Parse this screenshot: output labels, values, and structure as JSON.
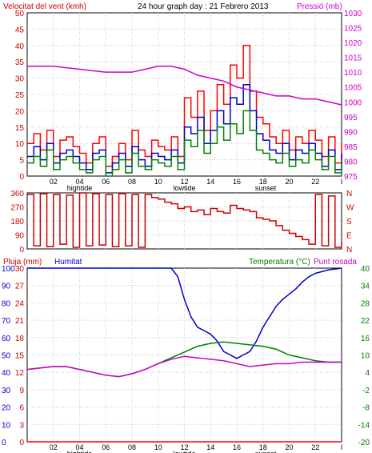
{
  "chart_data": [
    {
      "type": "line",
      "title": "24 hour graph day : 21 Febrero 2013",
      "left_label": "Velocitat del vent (kmh)",
      "right_label": "Pressió (mb)",
      "ylim": [
        0,
        50
      ],
      "y2lim": [
        975,
        1030
      ],
      "yticks": [
        "0",
        "5",
        "10",
        "15",
        "20",
        "25",
        "30",
        "35",
        "40",
        "45",
        "50"
      ],
      "y2ticks": [
        "975",
        "980",
        "985",
        "990",
        "995",
        "1000",
        "1005",
        "1010",
        "1015",
        "1020",
        "1025",
        "1030"
      ],
      "xticks": [
        "02",
        "04",
        "06",
        "08",
        "10",
        "12",
        "14",
        "16",
        "18",
        "20",
        "22",
        "I"
      ],
      "annotations": [
        "hightide",
        "lowtide",
        "sunset"
      ],
      "series": [
        {
          "role": "wind_gust",
          "color": "#ff0000",
          "x": [
            0,
            0.5,
            1,
            1.5,
            2,
            2.5,
            3,
            3.5,
            4,
            4.5,
            5,
            5.5,
            6,
            6.5,
            7,
            7.5,
            8,
            8.5,
            9,
            9.5,
            10,
            10.5,
            11,
            11.5,
            12,
            12.5,
            13,
            13.5,
            14,
            14.5,
            15,
            15.5,
            16,
            16.5,
            17,
            17.5,
            18,
            18.5,
            19,
            19.5,
            20,
            20.5,
            21,
            21.5,
            22,
            22.5,
            23,
            23.5,
            24
          ],
          "values": [
            10,
            13,
            8,
            14,
            6,
            11,
            12,
            9,
            7,
            4,
            10,
            12,
            3,
            6,
            10,
            5,
            14,
            8,
            6,
            11,
            9,
            8,
            12,
            6,
            24,
            18,
            26,
            14,
            20,
            28,
            22,
            34,
            30,
            40,
            26,
            18,
            16,
            12,
            10,
            14,
            8,
            12,
            10,
            14,
            11,
            6,
            12,
            4,
            10
          ]
        },
        {
          "role": "wind_avg",
          "color": "#0000cc",
          "x": [
            0,
            0.5,
            1,
            1.5,
            2,
            2.5,
            3,
            3.5,
            4,
            4.5,
            5,
            5.5,
            6,
            6.5,
            7,
            7.5,
            8,
            8.5,
            9,
            9.5,
            10,
            10.5,
            11,
            11.5,
            12,
            12.5,
            13,
            13.5,
            14,
            14.5,
            15,
            15.5,
            16,
            16.5,
            17,
            17.5,
            18,
            18.5,
            19,
            19.5,
            20,
            20.5,
            21,
            21.5,
            22,
            22.5,
            23,
            23.5,
            24
          ],
          "values": [
            6,
            9,
            5,
            10,
            4,
            7,
            8,
            6,
            4,
            2,
            7,
            8,
            1,
            4,
            7,
            3,
            9,
            5,
            3,
            7,
            6,
            5,
            8,
            4,
            15,
            13,
            18,
            10,
            14,
            20,
            16,
            24,
            22,
            28,
            20,
            13,
            11,
            8,
            7,
            10,
            5,
            8,
            7,
            10,
            7,
            3,
            8,
            2,
            7
          ]
        },
        {
          "role": "wind_dir_avg",
          "color": "#008000",
          "x": [
            0,
            0.5,
            1,
            1.5,
            2,
            2.5,
            3,
            3.5,
            4,
            4.5,
            5,
            5.5,
            6,
            6.5,
            7,
            7.5,
            8,
            8.5,
            9,
            9.5,
            10,
            10.5,
            11,
            11.5,
            12,
            12.5,
            13,
            13.5,
            14,
            14.5,
            15,
            15.5,
            16,
            16.5,
            17,
            17.5,
            18,
            18.5,
            19,
            19.5,
            20,
            20.5,
            21,
            21.5,
            22,
            22.5,
            23,
            23.5,
            24
          ],
          "values": [
            4,
            6,
            3,
            8,
            2,
            5,
            6,
            4,
            2,
            1,
            5,
            6,
            0,
            2,
            5,
            1,
            7,
            3,
            2,
            5,
            4,
            3,
            6,
            2,
            11,
            9,
            14,
            7,
            10,
            15,
            11,
            16,
            13,
            20,
            14,
            8,
            7,
            5,
            4,
            7,
            3,
            5,
            4,
            8,
            5,
            2,
            6,
            1,
            5
          ]
        },
        {
          "role": "pressure",
          "color": "#cc00cc",
          "axis": "right",
          "x": [
            0,
            2,
            4,
            6,
            8,
            9,
            10,
            11,
            12,
            13,
            14,
            15,
            16,
            17,
            18,
            19,
            20,
            21,
            22,
            23,
            24
          ],
          "values": [
            1012,
            1012,
            1011,
            1010,
            1010,
            1011,
            1012,
            1012,
            1011,
            1009,
            1008,
            1007,
            1005,
            1004,
            1003,
            1002,
            1002,
            1001,
            1001,
            1000,
            999
          ]
        }
      ]
    },
    {
      "type": "line",
      "ylim": [
        0,
        360
      ],
      "yticks": [
        "0",
        "90",
        "180",
        "270",
        "360"
      ],
      "compass": [
        "N",
        "W",
        "S",
        "E",
        "N"
      ],
      "series": [
        {
          "role": "wind_direction",
          "color": "#cc0000",
          "x": [
            0,
            0.5,
            1,
            1.5,
            2,
            2.5,
            3,
            3.5,
            4,
            4.5,
            5,
            5.5,
            6,
            6.5,
            7,
            7.5,
            8,
            8.5,
            9,
            9.5,
            10,
            10.5,
            11,
            11.5,
            12,
            12.5,
            13,
            13.5,
            14,
            14.5,
            15,
            15.5,
            16,
            16.5,
            17,
            17.5,
            18,
            18.5,
            19,
            19.5,
            20,
            20.5,
            21,
            21.5,
            22,
            22.5,
            23,
            23.5,
            24
          ],
          "values": [
            350,
            20,
            355,
            15,
            350,
            30,
            345,
            10,
            360,
            20,
            355,
            25,
            350,
            15,
            355,
            20,
            350,
            10,
            350,
            330,
            320,
            300,
            290,
            260,
            270,
            240,
            250,
            220,
            260,
            240,
            230,
            280,
            260,
            250,
            240,
            200,
            190,
            180,
            150,
            120,
            100,
            80,
            60,
            30,
            350,
            20,
            340,
            10,
            50
          ]
        }
      ]
    },
    {
      "type": "line",
      "labels_left": [
        "Pluja (mm)",
        "Humitat"
      ],
      "labels_right": [
        "Temperatura (°C)",
        "Punt rosada"
      ],
      "ylim_humidity": [
        0,
        100
      ],
      "ylim_rain": [
        0,
        30
      ],
      "ylim_temp": [
        -20,
        40
      ],
      "yticks_humidity": [
        "0",
        "10",
        "20",
        "30",
        "40",
        "50",
        "60",
        "70",
        "80",
        "90",
        "100"
      ],
      "yticks_rain": [
        "0",
        "3",
        "6",
        "9",
        "12",
        "15",
        "18",
        "21",
        "24",
        "27",
        "30"
      ],
      "yticks_temp": [
        "-20",
        "-14",
        "-8",
        "-2",
        "4",
        "10",
        "16",
        "22",
        "28",
        "34",
        "40"
      ],
      "xticks": [
        "02",
        "04",
        "06",
        "08",
        "10",
        "12",
        "14",
        "16",
        "18",
        "20",
        "22",
        "I"
      ],
      "annotations": [
        "hightide",
        "lowtide",
        "sunset"
      ],
      "series": [
        {
          "role": "humidity",
          "color": "#0000cc",
          "x": [
            0,
            1,
            2,
            3,
            4,
            5,
            6,
            7,
            8,
            9,
            10,
            11,
            11.5,
            12,
            12.5,
            13,
            13.5,
            14,
            14.5,
            15,
            15.5,
            16,
            16.5,
            17,
            17.5,
            18,
            18.5,
            19,
            19.5,
            20,
            20.5,
            21,
            21.5,
            22,
            22.5,
            23,
            24
          ],
          "values": [
            100,
            100,
            100,
            100,
            100,
            100,
            100,
            100,
            100,
            100,
            100,
            100,
            95,
            82,
            72,
            66,
            64,
            62,
            58,
            52,
            50,
            48,
            50,
            52,
            58,
            66,
            72,
            78,
            82,
            85,
            88,
            92,
            95,
            97,
            98,
            99,
            100
          ]
        },
        {
          "role": "temperature",
          "color": "#008000",
          "x": [
            0,
            1,
            2,
            3,
            4,
            5,
            6,
            7,
            8,
            9,
            10,
            11,
            12,
            13,
            14,
            15,
            16,
            17,
            18,
            19,
            20,
            21,
            22,
            23,
            24
          ],
          "values": [
            5,
            5.5,
            6,
            6,
            5,
            4,
            3,
            2.5,
            3.5,
            5,
            7,
            9,
            11,
            13,
            14,
            14.5,
            14,
            13.5,
            13,
            12,
            10,
            9,
            8,
            7.5,
            7.5
          ]
        },
        {
          "role": "dew_point",
          "color": "#cc00cc",
          "x": [
            0,
            1,
            2,
            3,
            4,
            5,
            6,
            7,
            8,
            9,
            10,
            11,
            12,
            13,
            14,
            15,
            16,
            17,
            18,
            19,
            20,
            21,
            22,
            23,
            24
          ],
          "values": [
            5,
            5.5,
            6,
            6,
            5,
            4,
            3,
            2.5,
            3.5,
            5,
            7,
            8.5,
            9.5,
            9,
            8.5,
            8,
            7,
            6,
            6.5,
            7,
            7,
            7.5,
            7.5,
            7.5,
            7.5
          ]
        },
        {
          "role": "rain",
          "color": "#ff0000",
          "x": [
            0,
            24
          ],
          "values": [
            0,
            0
          ]
        }
      ]
    }
  ]
}
